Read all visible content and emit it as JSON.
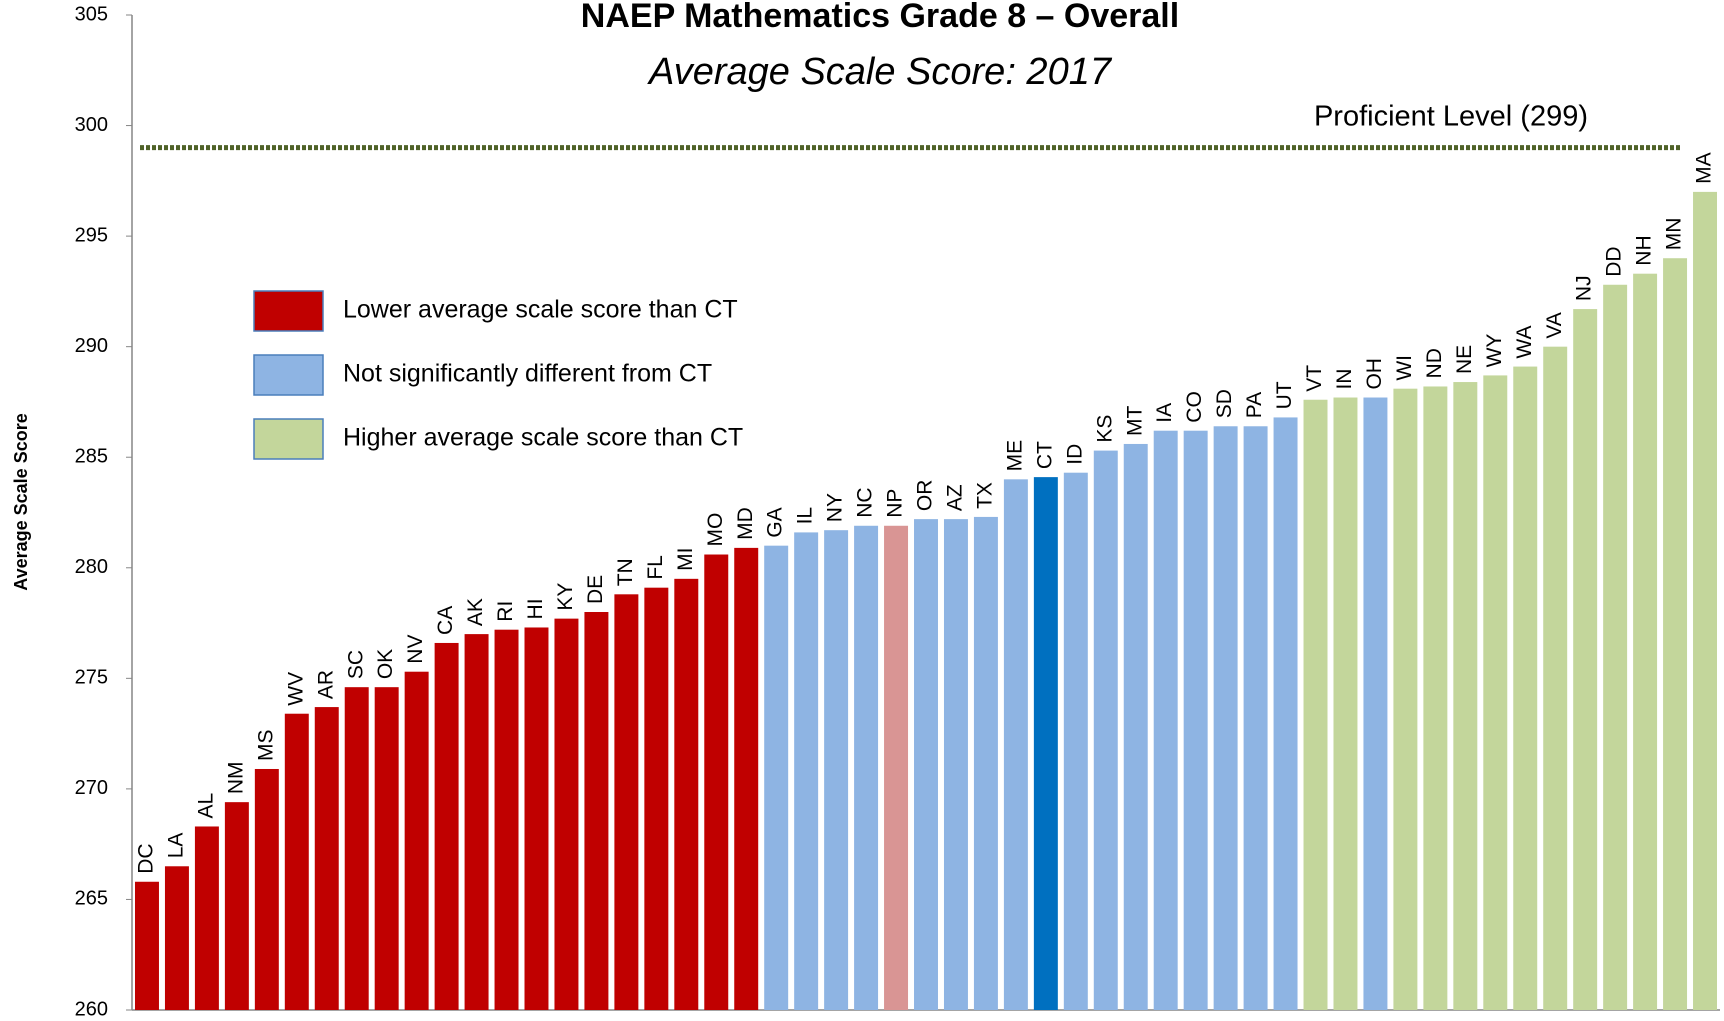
{
  "chart_data": {
    "type": "bar",
    "title": "NAEP Mathematics Grade 8 – Overall",
    "subtitle": "Average Scale Score: 2017",
    "y_label": "Average Scale Score",
    "categories": [
      "DC",
      "LA",
      "AL",
      "NM",
      "MS",
      "WV",
      "AR",
      "SC",
      "OK",
      "NV",
      "CA",
      "AK",
      "RI",
      "HI",
      "KY",
      "DE",
      "TN",
      "FL",
      "MI",
      "MO",
      "MD",
      "GA",
      "IL",
      "NY",
      "NC",
      "NP",
      "OR",
      "AZ",
      "TX",
      "ME",
      "CT",
      "ID",
      "KS",
      "MT",
      "IA",
      "CO",
      "SD",
      "PA",
      "UT",
      "VT",
      "IN",
      "OH",
      "WI",
      "ND",
      "NE",
      "WY",
      "WA",
      "VA",
      "NJ",
      "DD",
      "NH",
      "MN",
      "MA"
    ],
    "values": [
      265.8,
      266.5,
      268.3,
      269.4,
      270.9,
      273.4,
      273.7,
      274.6,
      274.6,
      275.3,
      276.6,
      277.0,
      277.2,
      277.3,
      277.7,
      278.0,
      278.8,
      279.1,
      279.5,
      280.6,
      280.9,
      281.0,
      281.6,
      281.7,
      281.9,
      281.9,
      282.2,
      282.2,
      282.3,
      284.0,
      284.1,
      284.3,
      285.3,
      285.6,
      286.2,
      286.2,
      286.4,
      286.4,
      286.8,
      287.6,
      287.7,
      287.7,
      288.1,
      288.2,
      288.4,
      288.7,
      289.1,
      290.0,
      291.7,
      292.8,
      293.3,
      294.0,
      297.0
    ],
    "colors": [
      "#c00000",
      "#c00000",
      "#c00000",
      "#c00000",
      "#c00000",
      "#c00000",
      "#c00000",
      "#c00000",
      "#c00000",
      "#c00000",
      "#c00000",
      "#c00000",
      "#c00000",
      "#c00000",
      "#c00000",
      "#c00000",
      "#c00000",
      "#c00000",
      "#c00000",
      "#c00000",
      "#c00000",
      "#8eb4e3",
      "#8eb4e3",
      "#8eb4e3",
      "#8eb4e3",
      "#d99594",
      "#8eb4e3",
      "#8eb4e3",
      "#8eb4e3",
      "#8eb4e3",
      "#0070c0",
      "#8eb4e3",
      "#8eb4e3",
      "#8eb4e3",
      "#8eb4e3",
      "#8eb4e3",
      "#8eb4e3",
      "#8eb4e3",
      "#8eb4e3",
      "#c3d69b",
      "#c3d69b",
      "#8eb4e3",
      "#c3d69b",
      "#c3d69b",
      "#c3d69b",
      "#c3d69b",
      "#c3d69b",
      "#c3d69b",
      "#c3d69b",
      "#c3d69b",
      "#c3d69b",
      "#c3d69b",
      "#c3d69b"
    ],
    "legend": [
      {
        "name": "Lower average scale score than CT",
        "color": "#c00000"
      },
      {
        "name": "Not significantly different from CT",
        "color": "#8eb4e3"
      },
      {
        "name": "Higher average scale score than CT",
        "color": "#c3d69b"
      }
    ],
    "reference_line": {
      "value": 299,
      "label": "Proficient Level (299)",
      "color": "#4f6228"
    },
    "ylim": [
      260,
      305
    ],
    "yticks": [
      260,
      265,
      270,
      275,
      280,
      285,
      290,
      295,
      300,
      305
    ],
    "grid": false
  }
}
